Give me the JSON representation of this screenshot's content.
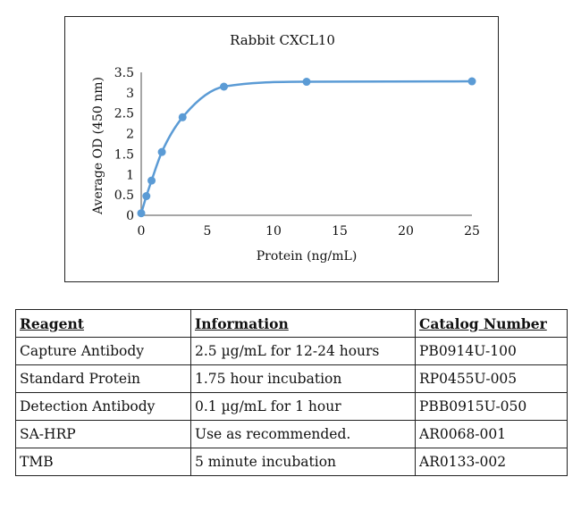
{
  "chart_data": {
    "type": "line",
    "title": "Rabbit CXCL10",
    "xlabel": "Protein (ng/mL)",
    "ylabel": "Average OD (450 nm)",
    "xlim": [
      0,
      25
    ],
    "ylim": [
      0,
      3.5
    ],
    "x_ticks": [
      0,
      5,
      10,
      15,
      20,
      25
    ],
    "y_ticks": [
      0,
      0.5,
      1,
      1.5,
      2,
      2.5,
      3,
      3.5
    ],
    "grid": false,
    "legend": "none",
    "color": "#5b9bd5",
    "series": [
      {
        "x": [
          0,
          0.39,
          0.78,
          1.56,
          3.125,
          6.25,
          12.5,
          25
        ],
        "y": [
          0.05,
          0.47,
          0.85,
          1.55,
          2.4,
          3.15,
          3.27,
          3.28
        ]
      }
    ]
  },
  "table": {
    "headers": [
      "Reagent",
      "Information",
      "Catalog Number"
    ],
    "rows": [
      [
        "Capture Antibody",
        "2.5 µg/mL for 12-24 hours",
        "PB0914U-100"
      ],
      [
        "Standard Protein",
        "1.75 hour incubation",
        "RP0455U-005"
      ],
      [
        "Detection Antibody",
        "0.1 µg/mL for 1 hour",
        "PBB0915U-050"
      ],
      [
        "SA-HRP",
        "Use as recommended.",
        "AR0068-001"
      ],
      [
        "TMB",
        "5 minute incubation",
        "AR0133-002"
      ]
    ]
  }
}
